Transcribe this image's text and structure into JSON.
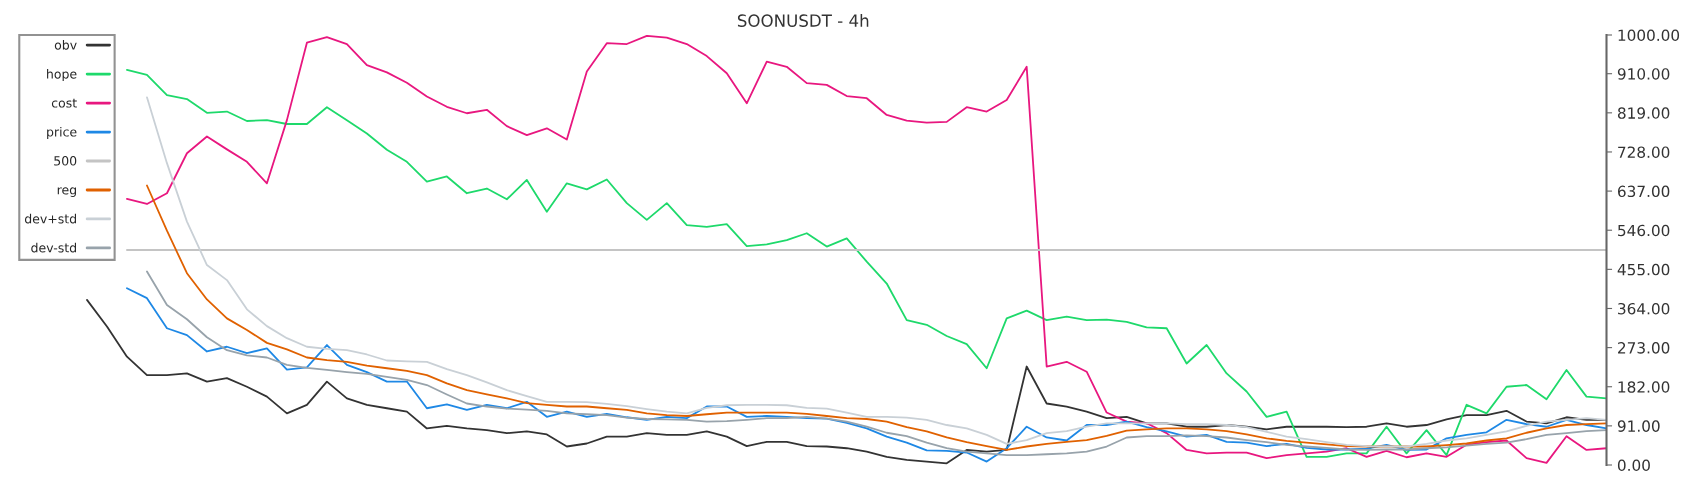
{
  "chart_data": {
    "type": "line",
    "title": "SOONUSDT - 4h",
    "categories": [
      null,
      null,
      null,
      null,
      null,
      null,
      null,
      null,
      null,
      null,
      null,
      null,
      null,
      null,
      null,
      null,
      null,
      null,
      null,
      null,
      null,
      null,
      null,
      null,
      null,
      null,
      null,
      null,
      null,
      null,
      null,
      null,
      null,
      null,
      null,
      null,
      null,
      null,
      null,
      null,
      null,
      null,
      null,
      null,
      null,
      null,
      null,
      null,
      null,
      null,
      null,
      null,
      null,
      null,
      null,
      null,
      null,
      null,
      null,
      null,
      null,
      null,
      null,
      null,
      null,
      null,
      null,
      null,
      null,
      null,
      null,
      null,
      null,
      null,
      null,
      null,
      null,
      null,
      null,
      null,
      null
    ],
    "series": [
      {
        "name": "obv",
        "color": "#333333",
        "values": [
          null,
          null,
          null,
          null,
          384,
          322,
          252,
          209,
          209,
          213,
          194,
          202,
          182,
          159,
          120,
          140,
          194,
          155,
          140,
          132,
          124,
          85,
          91,
          85,
          81,
          74,
          78,
          71,
          43,
          50,
          66,
          66,
          74,
          70,
          70,
          78,
          66,
          44,
          54,
          54,
          44,
          43,
          39,
          31,
          19,
          12,
          8,
          4,
          35,
          31,
          35,
          229,
          143,
          136,
          124,
          109,
          112,
          97,
          97,
          89,
          89,
          93,
          89,
          83,
          89,
          89,
          89,
          88,
          89,
          97,
          89,
          93,
          106,
          116,
          116,
          126,
          101,
          97,
          111,
          105,
          105
        ]
      },
      {
        "name": "hope",
        "color": "#1ed96b",
        "values": [
          null,
          null,
          null,
          null,
          null,
          null,
          919,
          907,
          860,
          851,
          819,
          822,
          800,
          802,
          793,
          793,
          832,
          802,
          771,
          733,
          705,
          659,
          671,
          632,
          643,
          618,
          663,
          589,
          655,
          641,
          664,
          609,
          570,
          609,
          558,
          554,
          560,
          509,
          513,
          523,
          539,
          508,
          527,
          473,
          422,
          337,
          326,
          300,
          281,
          225,
          341,
          359,
          337,
          345,
          337,
          338,
          333,
          320,
          318,
          236,
          279,
          213,
          171,
          112,
          124,
          19,
          19,
          27,
          27,
          89,
          27,
          81,
          23,
          140,
          120,
          182,
          186,
          153,
          221,
          159,
          155
        ]
      },
      {
        "name": "cost",
        "color": "#e8177f",
        "values": [
          null,
          null,
          null,
          null,
          null,
          null,
          619,
          607,
          632,
          725,
          764,
          734,
          705,
          655,
          802,
          982,
          995,
          979,
          930,
          913,
          889,
          857,
          833,
          818,
          826,
          788,
          767,
          783,
          757,
          915,
          981,
          979,
          998,
          994,
          979,
          951,
          911,
          841,
          938,
          926,
          888,
          884,
          858,
          853,
          814,
          801,
          796,
          798,
          832,
          822,
          849,
          926,
          229,
          240,
          217,
          122,
          101,
          97,
          74,
          35,
          27,
          29,
          29,
          16,
          23,
          27,
          31,
          39,
          19,
          33,
          18,
          27,
          19,
          47,
          53,
          57,
          16,
          5,
          67,
          35,
          39
        ]
      },
      {
        "name": "price",
        "color": "#1e88e5",
        "values": [
          null,
          null,
          null,
          null,
          null,
          null,
          411,
          388,
          318,
          302,
          264,
          275,
          260,
          271,
          222,
          227,
          279,
          233,
          216,
          194,
          194,
          132,
          141,
          128,
          140,
          132,
          147,
          112,
          124,
          112,
          119,
          111,
          105,
          112,
          109,
          136,
          136,
          112,
          114,
          112,
          109,
          108,
          98,
          85,
          66,
          52,
          34,
          33,
          29,
          8,
          39,
          89,
          64,
          57,
          93,
          93,
          101,
          88,
          78,
          66,
          70,
          54,
          52,
          44,
          49,
          40,
          36,
          36,
          38,
          47,
          35,
          36,
          62,
          70,
          76,
          105,
          95,
          89,
          105,
          93,
          85
        ]
      },
      {
        "name": "500",
        "color": "#c4c4c4",
        "values": [
          null,
          null,
          null,
          null,
          null,
          null,
          500,
          500,
          500,
          500,
          500,
          500,
          500,
          500,
          500,
          500,
          500,
          500,
          500,
          500,
          500,
          500,
          500,
          500,
          500,
          500,
          500,
          500,
          500,
          500,
          500,
          500,
          500,
          500,
          500,
          500,
          500,
          500,
          500,
          500,
          500,
          500,
          500,
          500,
          500,
          500,
          500,
          500,
          500,
          500,
          500,
          500,
          500,
          500,
          500,
          500,
          500,
          500,
          500,
          500,
          500,
          500,
          500,
          500,
          500,
          500,
          500,
          500,
          500,
          500,
          500,
          500,
          500,
          500,
          500,
          500,
          500,
          500,
          500,
          500,
          500
        ]
      },
      {
        "name": "reg",
        "color": "#e06100",
        "values": [
          null,
          null,
          null,
          null,
          null,
          null,
          null,
          650,
          545,
          446,
          385,
          341,
          314,
          284,
          269,
          250,
          244,
          240,
          231,
          225,
          219,
          209,
          190,
          174,
          164,
          155,
          144,
          140,
          136,
          136,
          132,
          128,
          120,
          116,
          114,
          118,
          122,
          122,
          122,
          122,
          119,
          114,
          109,
          107,
          101,
          88,
          78,
          64,
          53,
          44,
          35,
          43,
          49,
          54,
          58,
          68,
          80,
          83,
          85,
          85,
          83,
          79,
          71,
          62,
          56,
          52,
          48,
          44,
          43,
          43,
          43,
          43,
          46,
          50,
          57,
          62,
          75,
          85,
          93,
          95,
          97
        ]
      },
      {
        "name": "dev+std",
        "color": "#c9d0d6",
        "values": [
          null,
          null,
          null,
          null,
          null,
          null,
          null,
          855,
          702,
          566,
          465,
          430,
          362,
          323,
          295,
          275,
          270,
          267,
          257,
          243,
          241,
          240,
          223,
          209,
          192,
          174,
          160,
          147,
          147,
          146,
          142,
          137,
          130,
          124,
          120,
          133,
          139,
          140,
          140,
          139,
          133,
          131,
          122,
          112,
          112,
          110,
          105,
          93,
          85,
          70,
          49,
          58,
          74,
          79,
          89,
          97,
          97,
          97,
          97,
          95,
          95,
          93,
          88,
          77,
          66,
          60,
          53,
          47,
          44,
          43,
          43,
          49,
          57,
          62,
          70,
          78,
          91,
          101,
          105,
          109,
          105
        ]
      },
      {
        "name": "dev-std",
        "color": "#98a3ab",
        "values": [
          null,
          null,
          null,
          null,
          null,
          null,
          null,
          450,
          372,
          339,
          297,
          267,
          255,
          250,
          233,
          226,
          221,
          216,
          212,
          205,
          198,
          186,
          164,
          143,
          136,
          131,
          129,
          126,
          120,
          118,
          116,
          110,
          107,
          106,
          105,
          101,
          102,
          105,
          109,
          109,
          112,
          108,
          101,
          89,
          75,
          67,
          52,
          39,
          31,
          27,
          23,
          23,
          25,
          27,
          31,
          43,
          64,
          67,
          67,
          69,
          67,
          64,
          58,
          53,
          47,
          43,
          40,
          36,
          35,
          36,
          36,
          39,
          41,
          45,
          49,
          52,
          60,
          70,
          74,
          79,
          81
        ]
      }
    ],
    "ylim": [
      0,
      1000
    ],
    "yticks": [
      {
        "value": 0,
        "label": "0.00"
      },
      {
        "value": 91,
        "label": "91.00"
      },
      {
        "value": 182,
        "label": "182.00"
      },
      {
        "value": 273,
        "label": "273.00"
      },
      {
        "value": 364,
        "label": "364.00"
      },
      {
        "value": 455,
        "label": "455.00"
      },
      {
        "value": 546,
        "label": "546.00"
      },
      {
        "value": 637,
        "label": "637.00"
      },
      {
        "value": 728,
        "label": "728.00"
      },
      {
        "value": 819,
        "label": "819.00"
      },
      {
        "value": 910,
        "label": "910.00"
      },
      {
        "value": 1000,
        "label": "1000.00"
      }
    ],
    "tick_labels": "y",
    "grid": false,
    "legend": "top left",
    "marker": "none",
    "line_style": "solid"
  }
}
